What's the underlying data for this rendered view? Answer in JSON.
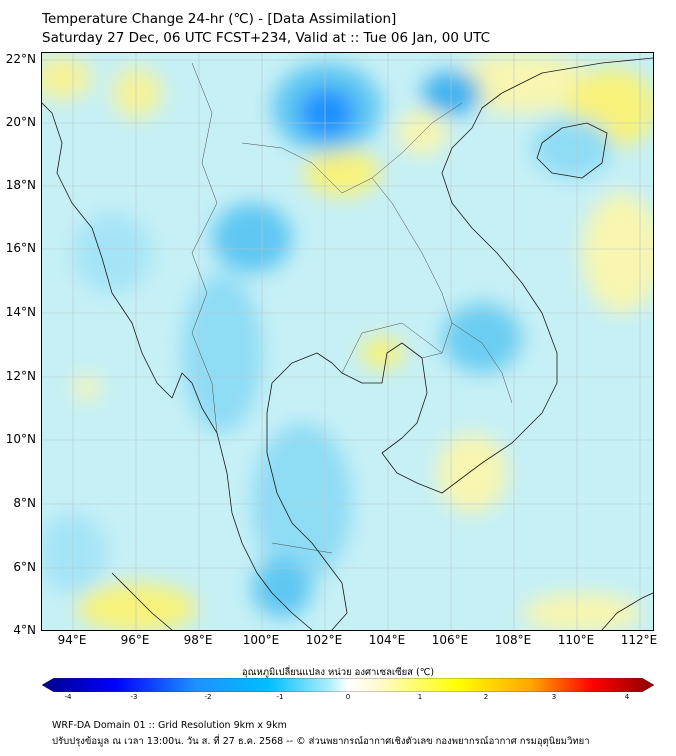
{
  "header": {
    "title": "Temperature Change 24-hr (℃) - [Data Assimilation]",
    "subtitle": "Saturday 27 Dec, 06 UTC FCST+234, Valid at :: Tue 06 Jan, 00 UTC"
  },
  "map": {
    "lon_range": [
      93,
      112.5
    ],
    "lat_range": [
      4,
      22.2
    ],
    "lat_labels": [
      "22°N",
      "20°N",
      "18°N",
      "16°N",
      "14°N",
      "12°N",
      "10°N",
      "8°N",
      "6°N",
      "4°N"
    ],
    "lon_labels": [
      "94°E",
      "96°E",
      "98°E",
      "100°E",
      "102°E",
      "104°E",
      "106°E",
      "108°E",
      "110°E",
      "112°E"
    ],
    "background_color": "#c6f0f6",
    "gridlines": true
  },
  "colorbar": {
    "title": "อุณหภูมิเปลี่ยนแปลง หน่วย องศาเซลเซียส (℃)",
    "ticks": [
      "-4",
      "-3",
      "-2",
      "-1",
      "0",
      "1",
      "2",
      "3",
      "4"
    ],
    "range": [
      -4,
      4
    ],
    "colors": [
      "#00008b",
      "#0000ff",
      "#1e90ff",
      "#00bfff",
      "#aeeefa",
      "#ffffff",
      "#fffacd",
      "#ffff00",
      "#ffa500",
      "#ff0000",
      "#8b0000"
    ]
  },
  "footer": {
    "line1": "WRF-DA Domain 01 :: Grid Resolution 9km x 9km",
    "line2": "ปรับปรุงข้อมูล ณ เวลา 13:00น. วัน ส. ที่ 27 ธ.ค. 2568 -- © ส่วนพยากรณ์อากาศเชิงตัวเลข กองพยากรณ์อากาศ กรมอุตุนิยมวิทยา"
  }
}
